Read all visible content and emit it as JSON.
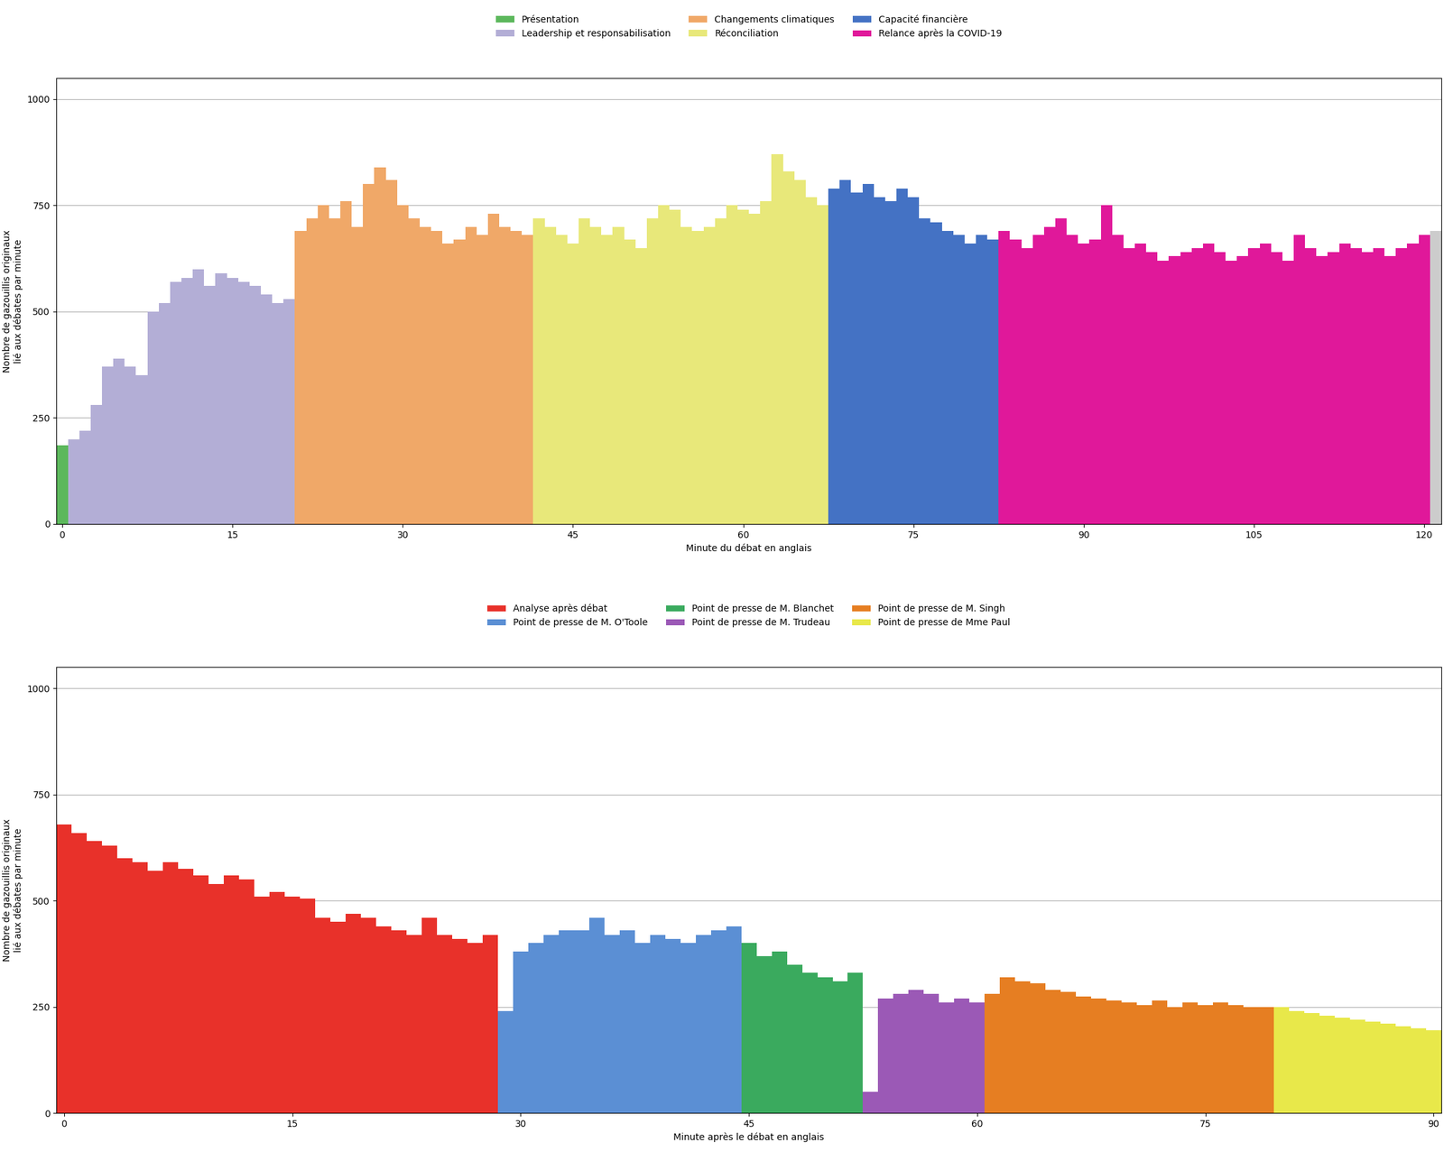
{
  "chart_data": [
    {
      "type": "bar",
      "x_label": "Minute du débat en anglais",
      "y_label": "Nombre de gazouillis originaux\nlié aux débates par minute",
      "xlim": [
        -0.5,
        121.5
      ],
      "xticks": [
        0,
        15,
        30,
        45,
        60,
        75,
        90,
        105,
        120
      ],
      "ylim": [
        0,
        1050
      ],
      "yticks": [
        0,
        250,
        500,
        750,
        1000
      ],
      "grid": "y",
      "legend": "upper center",
      "series": [
        {
          "name": "Présentation",
          "color": "#5cb85c",
          "x": [
            0
          ],
          "values": [
            185
          ]
        },
        {
          "name": "Leadership et responsabilisation",
          "color": "#b3aed6",
          "x": [
            1,
            2,
            3,
            4,
            5,
            6,
            7,
            8,
            9,
            10,
            11,
            12,
            13,
            14,
            15,
            16,
            17,
            18,
            19,
            20
          ],
          "values": [
            200,
            220,
            280,
            370,
            390,
            370,
            350,
            500,
            520,
            570,
            580,
            600,
            560,
            590,
            580,
            570,
            560,
            540,
            520,
            530
          ]
        },
        {
          "name": "Changements climatiques",
          "color": "#f0a868",
          "x": [
            21,
            22,
            23,
            24,
            25,
            26,
            27,
            28,
            29,
            30,
            31,
            32,
            33,
            34,
            35,
            36,
            37,
            38,
            39,
            40,
            41
          ],
          "values": [
            690,
            720,
            750,
            720,
            760,
            700,
            800,
            840,
            810,
            750,
            720,
            700,
            690,
            660,
            670,
            700,
            680,
            730,
            700,
            690,
            680
          ]
        },
        {
          "name": "Réconciliation",
          "color": "#e8e87a",
          "x": [
            42,
            43,
            44,
            45,
            46,
            47,
            48,
            49,
            50,
            51,
            52,
            53,
            54,
            55,
            56,
            57,
            58,
            59,
            60,
            61,
            62,
            63,
            64,
            65,
            66,
            67
          ],
          "values": [
            720,
            700,
            680,
            660,
            720,
            700,
            680,
            700,
            670,
            650,
            720,
            750,
            740,
            700,
            690,
            700,
            720,
            750,
            740,
            730,
            760,
            870,
            830,
            810,
            770,
            750
          ]
        },
        {
          "name": "Capacité financière",
          "color": "#4472c4",
          "x": [
            68,
            69,
            70,
            71,
            72,
            73,
            74,
            75,
            76,
            77,
            78,
            79,
            80,
            81,
            82
          ],
          "values": [
            790,
            810,
            780,
            800,
            770,
            760,
            790,
            770,
            720,
            710,
            690,
            680,
            660,
            680,
            670
          ]
        },
        {
          "name": "Relance après la COVID-19",
          "color": "#e0189a",
          "x": [
            83,
            84,
            85,
            86,
            87,
            88,
            89,
            90,
            91,
            92,
            93,
            94,
            95,
            96,
            97,
            98,
            99,
            100,
            101,
            102,
            103,
            104,
            105,
            106,
            107,
            108,
            109,
            110,
            111,
            112,
            113,
            114,
            115,
            116,
            117,
            118,
            119,
            120
          ],
          "values": [
            690,
            670,
            650,
            680,
            700,
            720,
            680,
            660,
            670,
            750,
            680,
            650,
            660,
            640,
            620,
            630,
            640,
            650,
            660,
            640,
            620,
            630,
            650,
            660,
            640,
            620,
            680,
            650,
            630,
            640,
            660,
            650,
            640,
            650,
            630,
            650,
            660,
            680
          ]
        },
        {
          "color": "#cccccc",
          "x": [
            121
          ],
          "values": [
            690
          ]
        }
      ]
    },
    {
      "type": "bar",
      "x_label": "Minute après le débat en anglais",
      "y_label": "Nombre de gazouillis originaux\nlié aux débates par minute",
      "xlim": [
        -0.5,
        90.5
      ],
      "xticks": [
        0,
        15,
        30,
        45,
        60,
        75,
        90
      ],
      "ylim": [
        0,
        1050
      ],
      "yticks": [
        0,
        250,
        500,
        750,
        1000
      ],
      "grid": "y",
      "legend": "upper center",
      "series": [
        {
          "name": "Analyse après débat",
          "color": "#e8312a",
          "x": [
            0,
            1,
            2,
            3,
            4,
            5,
            6,
            7,
            8,
            9,
            10,
            11,
            12,
            13,
            14,
            15,
            16,
            17,
            18,
            19,
            20,
            21,
            22,
            23,
            24,
            25,
            26,
            27,
            28
          ],
          "values": [
            680,
            660,
            640,
            630,
            600,
            590,
            570,
            590,
            575,
            560,
            540,
            560,
            550,
            510,
            520,
            510,
            505,
            460,
            450,
            470,
            460,
            440,
            430,
            420,
            460,
            420,
            410,
            400,
            420
          ]
        },
        {
          "name": "Point de presse de M. O'Toole",
          "color": "#5b8fd4",
          "x": [
            29,
            30,
            31,
            32,
            33,
            34,
            35,
            36,
            37,
            38,
            39,
            40,
            41,
            42,
            43,
            44
          ],
          "values": [
            240,
            380,
            400,
            420,
            430,
            430,
            460,
            420,
            430,
            400,
            420,
            410,
            400,
            420,
            430,
            440
          ]
        },
        {
          "name": "Point de presse de M. Blanchet",
          "color": "#3aaa5e",
          "x": [
            45,
            46,
            47,
            48,
            49,
            50,
            51,
            52
          ],
          "values": [
            400,
            370,
            380,
            350,
            330,
            320,
            310,
            330
          ]
        },
        {
          "name": "Point de presse de M. Trudeau",
          "color": "#9b59b6",
          "x": [
            53,
            54,
            55,
            56,
            57,
            58,
            59,
            60
          ],
          "values": [
            50,
            270,
            280,
            290,
            280,
            260,
            270,
            260
          ]
        },
        {
          "name": "Point de presse de M. Singh",
          "color": "#e67e22",
          "x": [
            61,
            62,
            63,
            64,
            65,
            66,
            67,
            68,
            69,
            70,
            71,
            72,
            73,
            74,
            75,
            76,
            77,
            78,
            79
          ],
          "values": [
            280,
            320,
            310,
            305,
            290,
            285,
            275,
            270,
            265,
            260,
            255,
            265,
            250,
            260,
            255,
            260,
            255,
            250,
            250
          ]
        },
        {
          "name": "Point de presse de Mme Paul",
          "color": "#e8e84a",
          "x": [
            80,
            81,
            82,
            83,
            84,
            85,
            86,
            87,
            88,
            89,
            90
          ],
          "values": [
            250,
            240,
            235,
            230,
            225,
            220,
            215,
            210,
            205,
            200,
            195
          ]
        }
      ]
    }
  ]
}
